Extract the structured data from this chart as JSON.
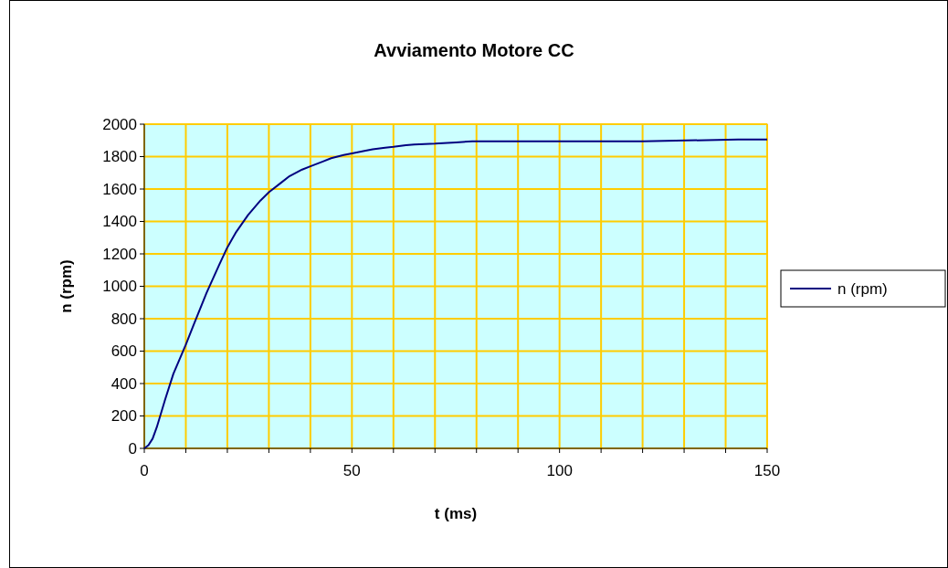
{
  "chart_data": {
    "type": "line",
    "title": "Avviamento Motore CC",
    "xlabel": "t (ms)",
    "ylabel": "n (rpm)",
    "x": [
      0,
      1,
      2,
      3,
      5,
      7,
      10,
      12,
      15,
      18,
      20,
      22,
      25,
      28,
      30,
      33,
      35,
      38,
      40,
      43,
      45,
      48,
      50,
      53,
      55,
      58,
      60,
      63,
      65,
      70,
      75,
      79,
      100,
      120,
      143,
      150
    ],
    "series": [
      {
        "name": "n (rpm)",
        "color": "#000080",
        "values": [
          0,
          20,
          60,
          130,
          300,
          460,
          640,
          770,
          960,
          1130,
          1240,
          1330,
          1440,
          1530,
          1580,
          1640,
          1680,
          1720,
          1740,
          1770,
          1790,
          1810,
          1820,
          1835,
          1845,
          1855,
          1860,
          1870,
          1875,
          1880,
          1888,
          1895,
          1895,
          1895,
          1905,
          1905
        ]
      }
    ],
    "xlim": [
      0,
      150
    ],
    "ylim": [
      0,
      2000
    ],
    "xticks": [
      0,
      {
        "value": 10,
        "label": null
      },
      {
        "value": 20,
        "label": null
      },
      {
        "value": 30,
        "label": null
      },
      {
        "value": 40,
        "label": null
      },
      50,
      {
        "value": 60,
        "label": null
      },
      {
        "value": 70,
        "label": null
      },
      {
        "value": 80,
        "label": null
      },
      {
        "value": 90,
        "label": null
      },
      100,
      {
        "value": 110,
        "label": null
      },
      {
        "value": 120,
        "label": null
      },
      {
        "value": 130,
        "label": null
      },
      {
        "value": 140,
        "label": null
      },
      150
    ],
    "yticks": [
      0,
      200,
      400,
      600,
      800,
      1000,
      1200,
      1400,
      1600,
      1800,
      2000
    ],
    "grid": true,
    "legend": "right",
    "marker": "none",
    "line_style": "solid"
  }
}
